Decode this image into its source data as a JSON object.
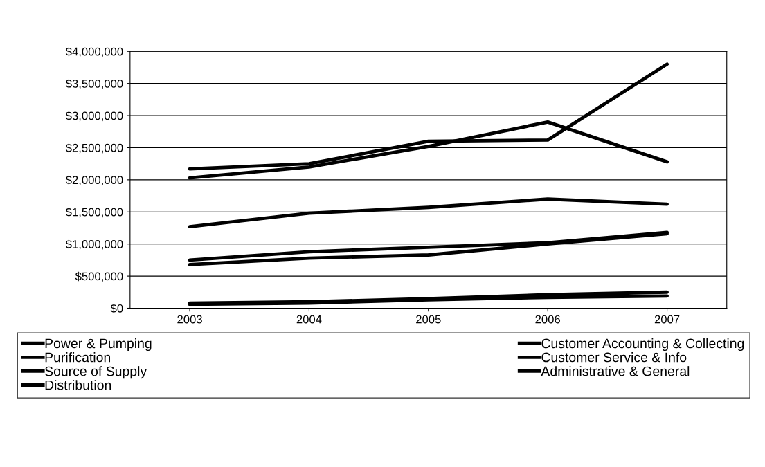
{
  "chart_data": {
    "type": "line",
    "categories": [
      "2003",
      "2004",
      "2005",
      "2006",
      "2007"
    ],
    "series": [
      {
        "name": "Power & Pumping",
        "color": "#000000",
        "values": [
          2170000,
          2250000,
          2600000,
          2620000,
          3800000
        ]
      },
      {
        "name": "Purification",
        "color": "#000000",
        "values": [
          2030000,
          2200000,
          2520000,
          2900000,
          2280000
        ]
      },
      {
        "name": "Source of Supply",
        "color": "#000000",
        "values": [
          1270000,
          1480000,
          1570000,
          1700000,
          1620000
        ]
      },
      {
        "name": "Distribution",
        "color": "#000000",
        "values": [
          750000,
          880000,
          950000,
          1020000,
          1180000
        ]
      },
      {
        "name": "Customer Accounting & Collecting",
        "color": "#000000",
        "values": [
          680000,
          780000,
          830000,
          1000000,
          1160000
        ]
      },
      {
        "name": "Customer Service & Info",
        "color": "#000000",
        "values": [
          80000,
          100000,
          150000,
          210000,
          250000
        ]
      },
      {
        "name": "Administrative & General",
        "color": "#000000",
        "values": [
          60000,
          80000,
          130000,
          170000,
          190000
        ]
      }
    ],
    "ylim": [
      0,
      4000000
    ],
    "yticks": [
      {
        "value": 0,
        "label": "$0"
      },
      {
        "value": 500000,
        "label": "$500,000"
      },
      {
        "value": 1000000,
        "label": "$1,000,000"
      },
      {
        "value": 1500000,
        "label": "$1,500,000"
      },
      {
        "value": 2000000,
        "label": "$2,000,000"
      },
      {
        "value": 2500000,
        "label": "$2,500,000"
      },
      {
        "value": 3000000,
        "label": "$3,000,000"
      },
      {
        "value": 3500000,
        "label": "$3,500,000"
      },
      {
        "value": 4000000,
        "label": "$4,000,000"
      }
    ],
    "grid": "y",
    "legend": "bottom",
    "marker": "none",
    "line_style": "solid"
  }
}
